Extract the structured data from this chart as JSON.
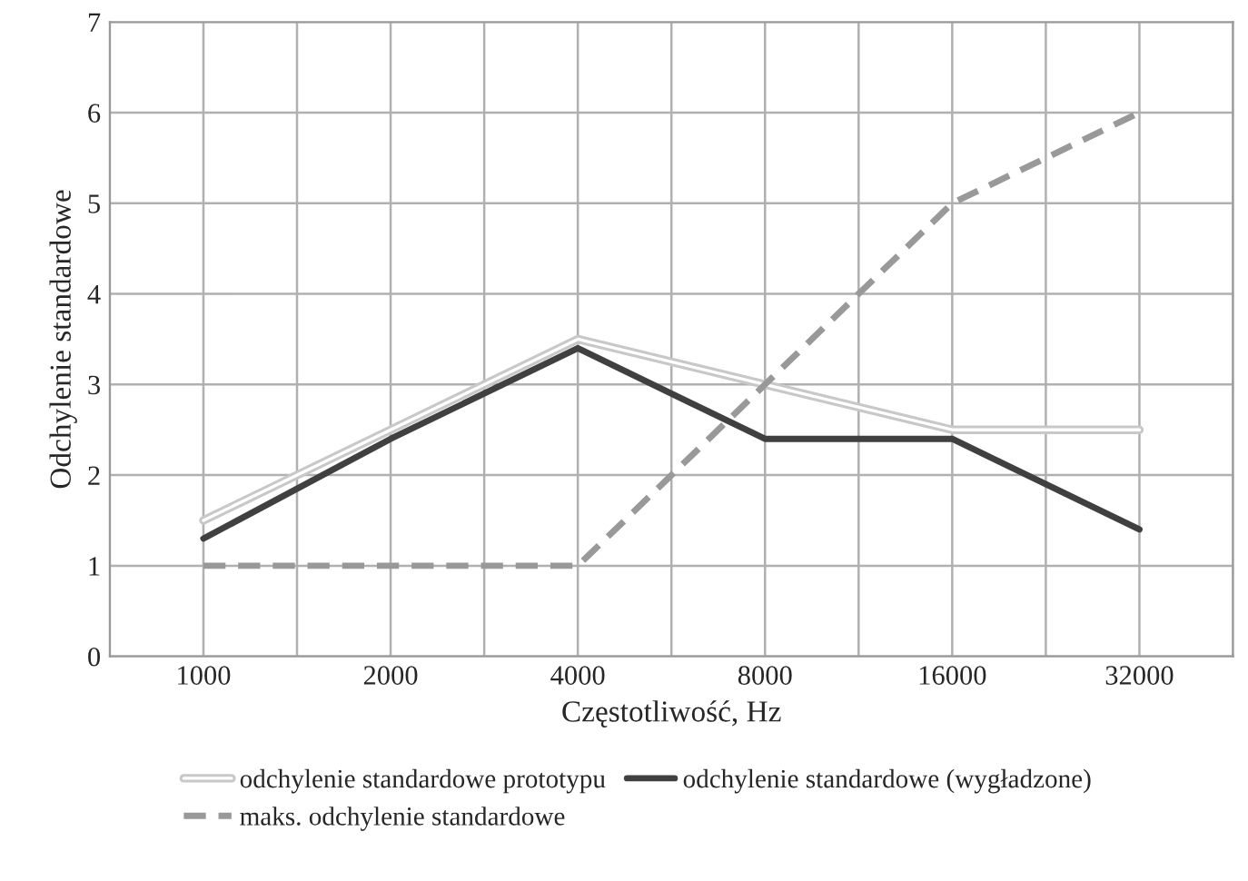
{
  "chart_data": {
    "type": "line",
    "xlabel": "Częstotliwość, Hz",
    "ylabel": "Odchylenie standardowe",
    "categories": [
      "1000",
      "2000",
      "4000",
      "8000",
      "16000",
      "32000"
    ],
    "series": [
      {
        "name": "odchylenie standardowe prototypu",
        "color": "#c8c8c8",
        "line_style": "solid",
        "values": [
          1.5,
          2.5,
          3.5,
          3.0,
          2.5,
          2.5
        ]
      },
      {
        "name": "maks. odchylenie standardowe",
        "color": "#999999",
        "line_style": "dashed",
        "values": [
          1,
          1,
          1,
          3,
          5,
          6
        ]
      },
      {
        "name": "odchylenie standardowe (wygładzone)",
        "color": "#404040",
        "line_style": "solid",
        "values": [
          1.3,
          2.4,
          3.4,
          2.4,
          2.4,
          1.4
        ]
      }
    ],
    "ylim": [
      0,
      7
    ],
    "yticks": [
      0,
      1,
      2,
      3,
      4,
      5,
      6,
      7
    ],
    "grid": true,
    "legend": "bottom",
    "marker": "none"
  }
}
